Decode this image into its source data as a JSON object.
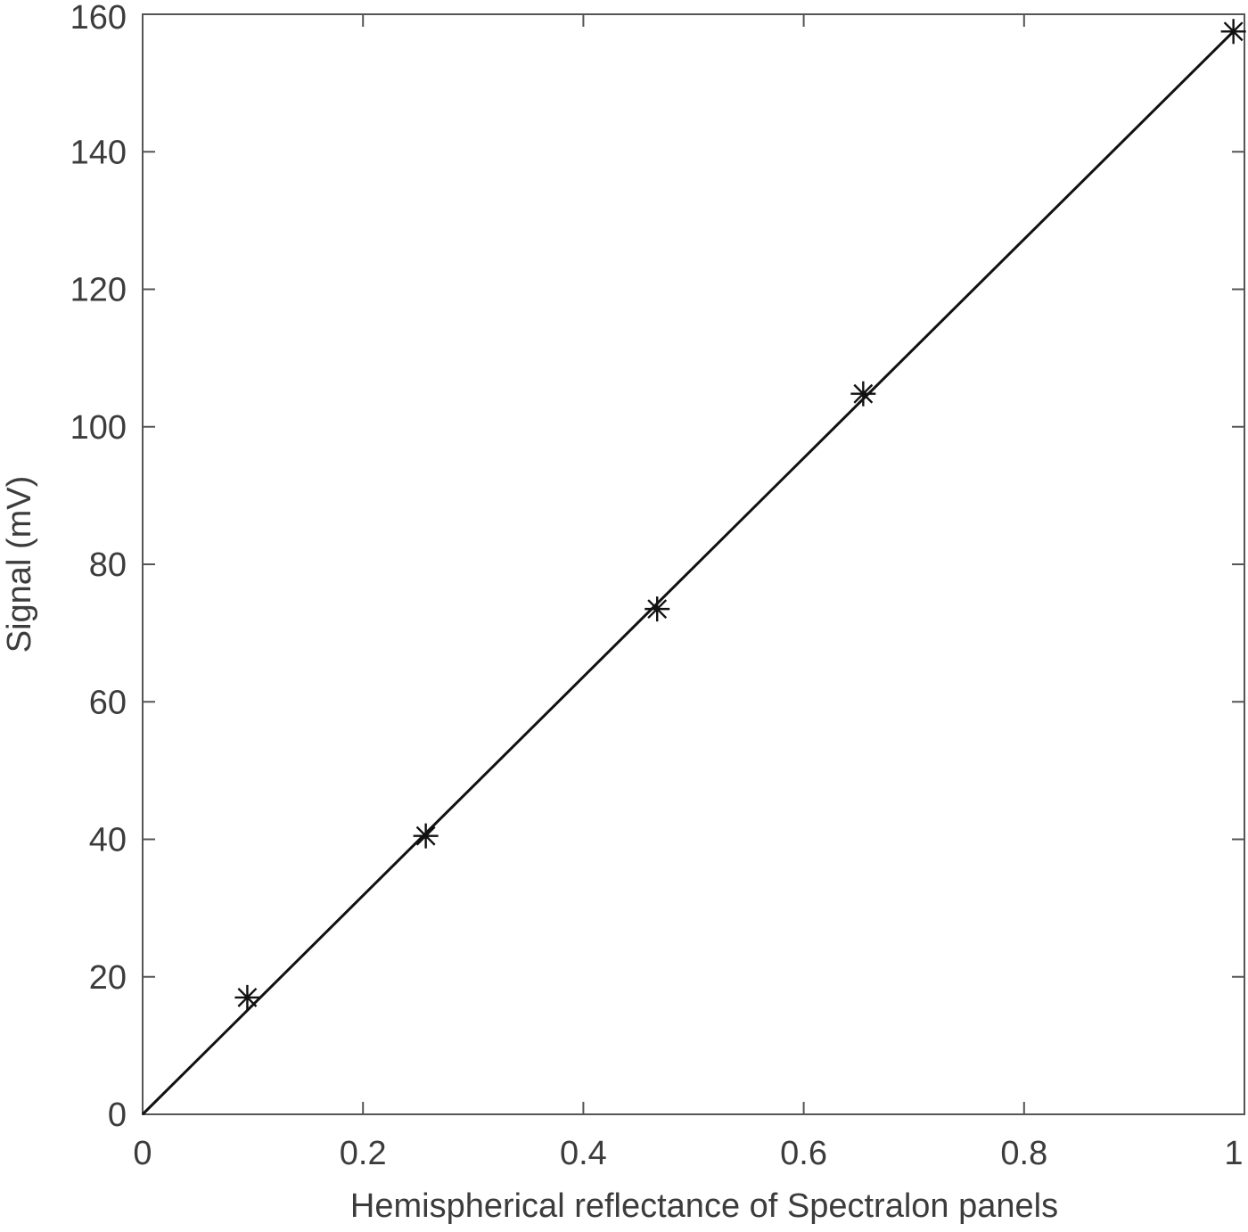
{
  "chart_data": {
    "type": "scatter",
    "title": "",
    "xlabel": "Hemispherical reflectance of Spectralon panels",
    "ylabel": "Signal (mV)",
    "xlim": [
      0,
      1
    ],
    "ylim": [
      0,
      160
    ],
    "x_ticks": [
      0,
      0.2,
      0.4,
      0.6,
      0.8,
      1
    ],
    "x_tick_labels": [
      "0",
      "0.2",
      "0.4",
      "0.6",
      "0.8",
      "1"
    ],
    "y_ticks": [
      0,
      20,
      40,
      60,
      80,
      100,
      120,
      140,
      160
    ],
    "y_tick_labels": [
      "0",
      "20",
      "40",
      "60",
      "80",
      "100",
      "120",
      "140",
      "160"
    ],
    "grid": false,
    "series": [
      {
        "kind": "points",
        "marker": "asterisk",
        "x": [
          0.095,
          0.257,
          0.467,
          0.654,
          0.99
        ],
        "y": [
          17,
          40.5,
          73.5,
          104.8,
          157.5
        ]
      },
      {
        "kind": "fit-line",
        "x": [
          0,
          0.99
        ],
        "y": [
          0,
          157.5
        ]
      }
    ],
    "colors": {
      "axes": "#555555",
      "text": "#3c3c3c",
      "line": "#111111",
      "marker": "#111111"
    }
  }
}
